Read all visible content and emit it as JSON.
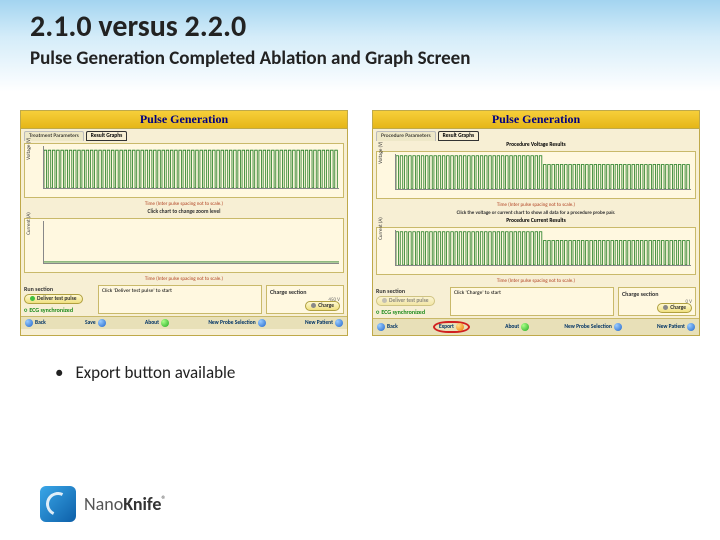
{
  "slide": {
    "title": "2.1.0 versus 2.2.0",
    "subtitle": "Pulse Generation Completed Ablation and Graph Screen",
    "bullet": "Export button available",
    "logo_text_plain": "Nano",
    "logo_text_bold": "Knife",
    "logo_reg": "®"
  },
  "colors": {
    "header_gradient_top": "#a3d4f0",
    "panel_bg": "#f7efd4",
    "panel_border": "#bfa94a",
    "yellow_bar_dark": "#e5b618",
    "chart_bg": "#fff8e0",
    "wave_green": "#1e7a1e",
    "caption_red": "#b04020",
    "export_ring": "#d02020"
  },
  "left_panel": {
    "header": "Pulse Generation",
    "tabs": [
      "Treatment Parameters",
      "Result Graphs"
    ],
    "charts": {
      "voltage": {
        "ylabel": "Voltage (V)",
        "ytick_max": 3000,
        "ytick_step": 500,
        "caption": "Time (Inter pulse spacing not to scale.)",
        "hint": "Click chart to change zoom level",
        "data_dense": true
      },
      "current": {
        "ylabel": "Current (A)",
        "ytick_max": 50,
        "ytick_step": 10,
        "caption": "Time (Inter pulse spacing not to scale.)",
        "data_dense": false
      }
    },
    "run": {
      "section_label": "Run section",
      "test_btn": "Deliver test pulse",
      "mid_text": "Click 'Deliver test pulse' to start",
      "charge_section": "Charge section",
      "charge_val": "450 V",
      "charge_btn": "Charge",
      "ecg": "ECG synchronized"
    },
    "bottom": {
      "back": "Back",
      "save": "Save",
      "about": "About",
      "probe": "New Probe Selection",
      "patient": "New Patient"
    }
  },
  "right_panel": {
    "header": "Pulse Generation",
    "tabs": [
      "Procedure Parameters",
      "Result Graphs"
    ],
    "charts": {
      "voltage": {
        "title": "Procedure Voltage Results",
        "ylabel": "Voltage (V)",
        "ytick_max": 3000,
        "ytick_step": 500,
        "caption": "Time (Inter pulse spacing not to scale.)",
        "hint": "Click the voltage or current chart to show all data for a procedure probe pair.",
        "data_dense": true
      },
      "current": {
        "title": "Procedure Current Results",
        "ylabel": "Current (A)",
        "ytick_max": 50,
        "ytick_step": 10,
        "caption": "Time (Inter pulse spacing not to scale.)",
        "data_dense": true
      }
    },
    "run": {
      "section_label": "Run section",
      "test_btn": "Deliver test pulse",
      "mid_text": "Click 'Charge' to start",
      "charge_section": "Charge section",
      "charge_val": "0 V",
      "charge_btn": "Charge",
      "ecg": "ECG synchronized"
    },
    "bottom": {
      "back": "Back",
      "export": "Export",
      "about": "About",
      "probe": "New Probe Selection",
      "patient": "New Patient"
    }
  }
}
